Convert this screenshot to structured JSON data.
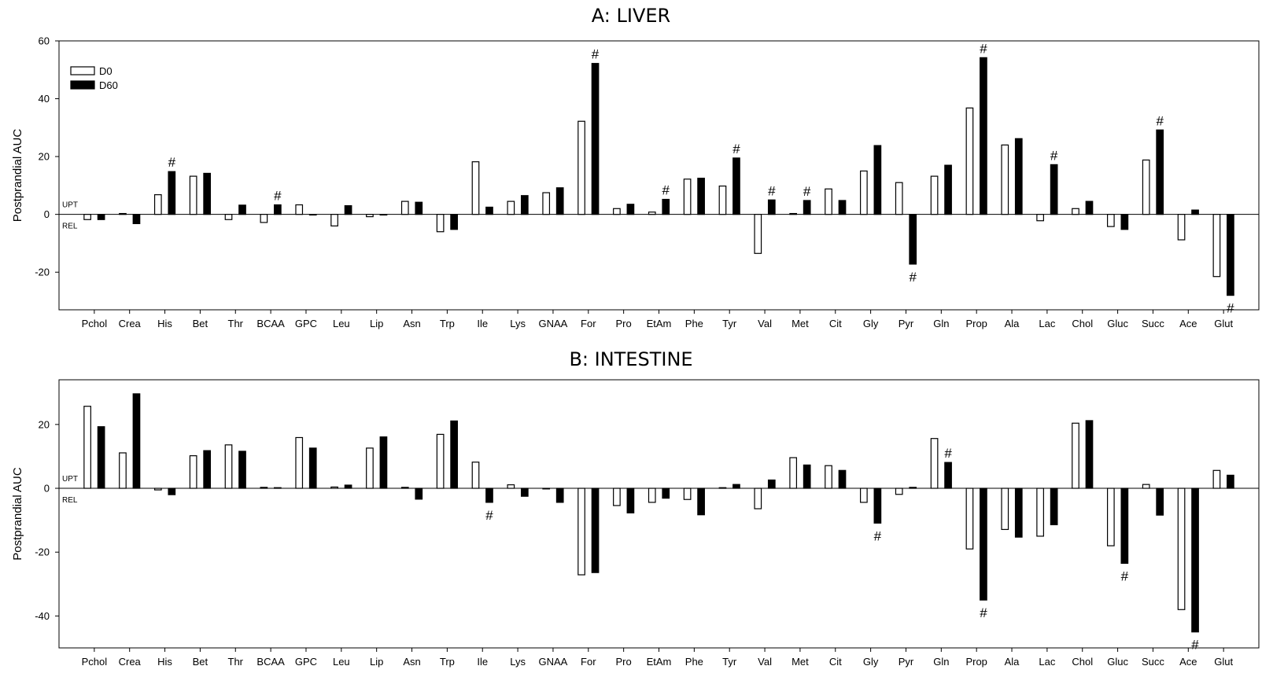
{
  "categories": [
    "Pchol",
    "Crea",
    "His",
    "Bet",
    "Thr",
    "BCAA",
    "GPC",
    "Leu",
    "Lip",
    "Asn",
    "Trp",
    "Ile",
    "Lys",
    "GNAA",
    "For",
    "Pro",
    "EtAm",
    "Phe",
    "Tyr",
    "Val",
    "Met",
    "Cit",
    "Gly",
    "Pyr",
    "Gln",
    "Prop",
    "Ala",
    "Lac",
    "Chol",
    "Gluc",
    "Succ",
    "Ace",
    "Glut"
  ],
  "colors": {
    "d0_fill": "#ffffff",
    "d60_fill": "#000000",
    "stroke": "#000000"
  },
  "chart_data": [
    {
      "type": "bar",
      "title": "A: LIVER",
      "ylabel": "Postprandial AUC",
      "ylim": [
        -33,
        60
      ],
      "yticks": [
        -20,
        0,
        20,
        40,
        60
      ],
      "zero_labels": {
        "above": "UPT",
        "below": "REL"
      },
      "legend_placement": "top-left",
      "significance_marker": "#",
      "series": [
        {
          "name": "D0",
          "values": [
            -1.8,
            0.3,
            6.8,
            13.2,
            -1.8,
            -2.8,
            3.3,
            -4.0,
            -0.8,
            4.5,
            -6.0,
            18.2,
            4.5,
            7.5,
            32.2,
            2.0,
            0.8,
            12.2,
            9.8,
            -13.5,
            0.3,
            8.8,
            15.0,
            11.0,
            13.2,
            36.8,
            24.0,
            -2.2,
            2.0,
            -4.2,
            18.8,
            -8.8,
            -21.5
          ]
        },
        {
          "name": "D60",
          "values": [
            -1.8,
            -3.2,
            14.8,
            14.2,
            3.2,
            3.3,
            -0.2,
            3.0,
            -0.2,
            4.2,
            -5.2,
            2.5,
            6.5,
            9.2,
            52.2,
            3.5,
            5.2,
            12.5,
            19.5,
            5.0,
            4.8,
            4.8,
            23.8,
            -17.2,
            17.0,
            54.2,
            26.2,
            17.2,
            4.5,
            -5.2,
            29.2,
            1.5,
            -28.0
          ]
        }
      ],
      "significant": [
        {
          "category": "His",
          "side": "above"
        },
        {
          "category": "BCAA",
          "side": "above"
        },
        {
          "category": "For",
          "side": "above"
        },
        {
          "category": "EtAm",
          "side": "above"
        },
        {
          "category": "Tyr",
          "side": "above"
        },
        {
          "category": "Val",
          "side": "above"
        },
        {
          "category": "Met",
          "side": "above"
        },
        {
          "category": "Pyr",
          "side": "below"
        },
        {
          "category": "Prop",
          "side": "above"
        },
        {
          "category": "Lac",
          "side": "above"
        },
        {
          "category": "Succ",
          "side": "above"
        },
        {
          "category": "Glut",
          "side": "below"
        }
      ]
    },
    {
      "type": "bar",
      "title": "B: INTESTINE",
      "ylabel": "Postprandial AUC",
      "ylim": [
        -50,
        34
      ],
      "yticks": [
        -40,
        -20,
        0,
        20
      ],
      "zero_labels": {
        "above": "UPT",
        "below": "REL"
      },
      "significance_marker": "#",
      "series": [
        {
          "name": "D0",
          "values": [
            25.7,
            11.1,
            -0.5,
            10.2,
            13.6,
            0.3,
            15.9,
            0.4,
            12.6,
            0.3,
            16.9,
            8.2,
            1.1,
            -0.2,
            -27.1,
            -5.4,
            -4.4,
            -3.5,
            0.2,
            -6.4,
            9.6,
            7.1,
            -4.4,
            -1.9,
            15.6,
            -19.0,
            -12.9,
            -15.0,
            20.4,
            -18.0,
            1.2,
            -38.0,
            5.6
          ]
        },
        {
          "name": "D60",
          "values": [
            19.3,
            29.6,
            -2.0,
            11.8,
            11.6,
            0.2,
            12.6,
            1.0,
            16.1,
            -3.4,
            21.1,
            -4.4,
            -2.5,
            -4.4,
            -26.4,
            -7.7,
            -3.1,
            -8.3,
            1.2,
            2.6,
            7.3,
            5.6,
            -10.9,
            0.3,
            8.1,
            -35.0,
            -15.3,
            -11.4,
            21.2,
            -23.5,
            -8.4,
            -45.0,
            4.1
          ]
        }
      ],
      "significant": [
        {
          "category": "Ile",
          "side": "below"
        },
        {
          "category": "Gly",
          "side": "below"
        },
        {
          "category": "Gln",
          "side": "above"
        },
        {
          "category": "Prop",
          "side": "below"
        },
        {
          "category": "Gluc",
          "side": "below"
        },
        {
          "category": "Ace",
          "side": "below"
        }
      ]
    }
  ]
}
